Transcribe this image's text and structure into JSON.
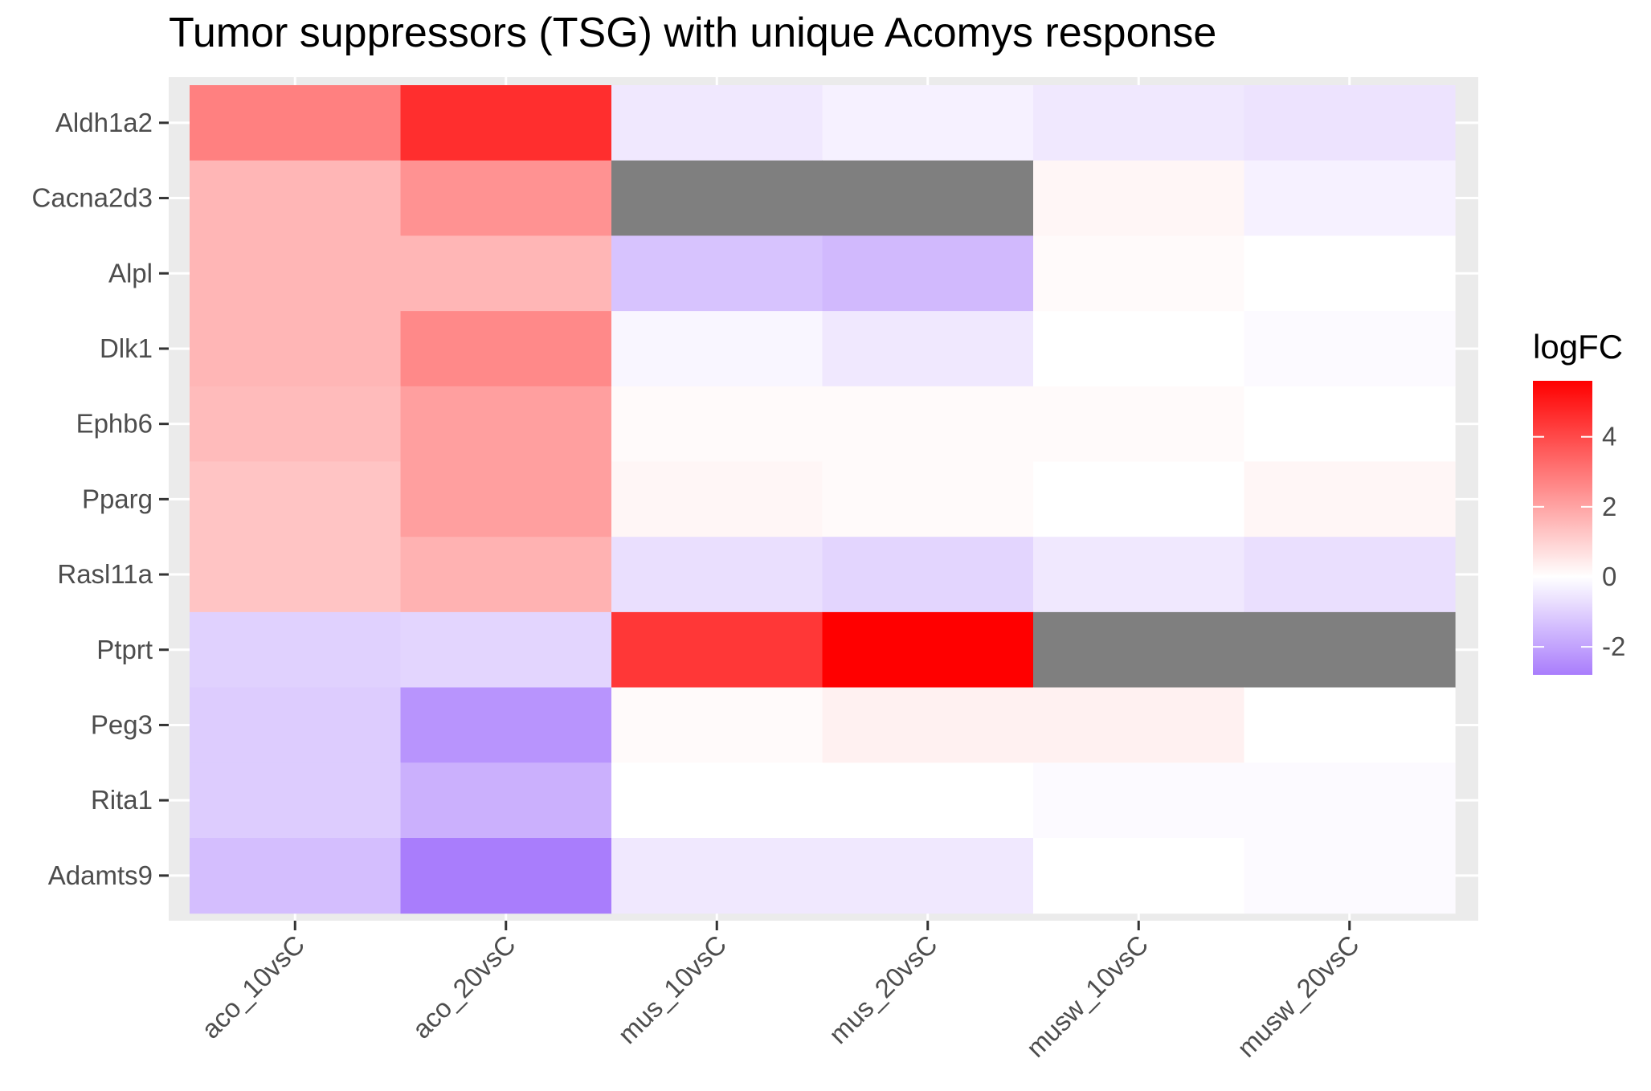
{
  "chart_data": {
    "type": "heatmap",
    "title": "Tumor suppressors (TSG) with unique Acomys response",
    "xlabel": "",
    "ylabel": "",
    "x_categories": [
      "aco_10vsC",
      "aco_20vsC",
      "mus_10vsC",
      "mus_20vsC",
      "musw_10vsC",
      "musw_20vsC"
    ],
    "y_categories": [
      "Aldh1a2",
      "Cacna2d3",
      "Alpl",
      "Dlk1",
      "Ephb6",
      "Pparg",
      "Rasl11a",
      "Ptprt",
      "Peg3",
      "Rita1",
      "Adamts9"
    ],
    "values": [
      [
        2.8,
        4.6,
        -0.5,
        -0.3,
        -0.5,
        -0.6
      ],
      [
        1.6,
        2.4,
        null,
        null,
        0.2,
        -0.3
      ],
      [
        1.6,
        1.6,
        -1.3,
        -1.5,
        0.1,
        0.0
      ],
      [
        1.6,
        2.6,
        -0.2,
        -0.5,
        0.0,
        -0.1
      ],
      [
        1.5,
        2.1,
        0.1,
        0.1,
        0.1,
        0.0
      ],
      [
        1.3,
        2.1,
        0.2,
        0.1,
        0.0,
        0.2
      ],
      [
        1.3,
        1.7,
        -0.7,
        -0.9,
        -0.5,
        -0.7
      ],
      [
        -1.0,
        -0.9,
        4.4,
        5.6,
        null,
        null
      ],
      [
        -1.1,
        -2.3,
        0.1,
        0.3,
        0.3,
        0.0
      ],
      [
        -1.1,
        -1.7,
        0.0,
        0.0,
        -0.1,
        -0.1
      ],
      [
        -1.4,
        -2.8,
        -0.5,
        -0.5,
        0.0,
        -0.1
      ]
    ],
    "na_color": "#7f7f7f",
    "colorscale": {
      "low_color": "#a97dfc",
      "mid_color": "#ffffff",
      "high_color": "#ff0000",
      "min": -2.8,
      "mid": 0,
      "max": 5.6
    },
    "legend": {
      "title": "logFC",
      "ticks": [
        4,
        2,
        0,
        -2
      ],
      "tick_labels": [
        "4",
        "2",
        "0",
        "-2"
      ],
      "position": "right"
    },
    "panel_background": "#ebebeb",
    "grid": true
  }
}
